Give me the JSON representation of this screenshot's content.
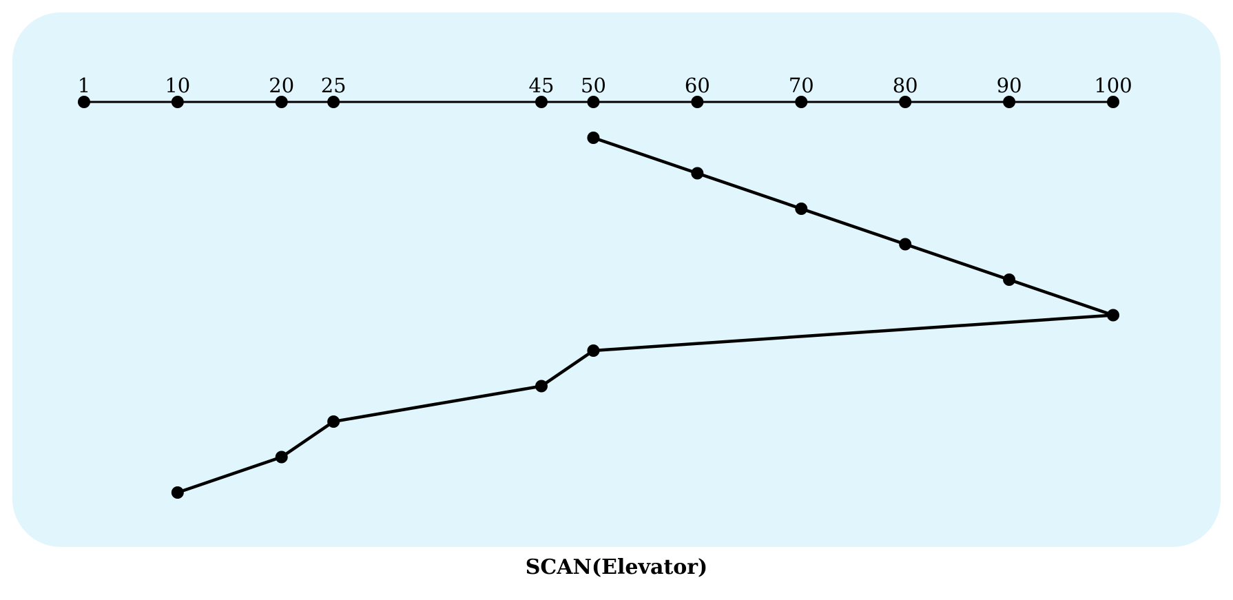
{
  "caption": "SCAN(Elevator)",
  "tracks": [
    1,
    10,
    20,
    25,
    45,
    50,
    60,
    70,
    80,
    90,
    100
  ],
  "track_labels": [
    "1",
    "10",
    "20",
    "25",
    "45",
    "50",
    "60",
    "70",
    "80",
    "90",
    "100"
  ],
  "service_order": [
    50,
    60,
    70,
    80,
    90,
    100,
    50,
    45,
    25,
    20,
    10
  ],
  "colors": {
    "background": "#e0f5fc",
    "line": "#000000",
    "point": "#000000"
  }
}
